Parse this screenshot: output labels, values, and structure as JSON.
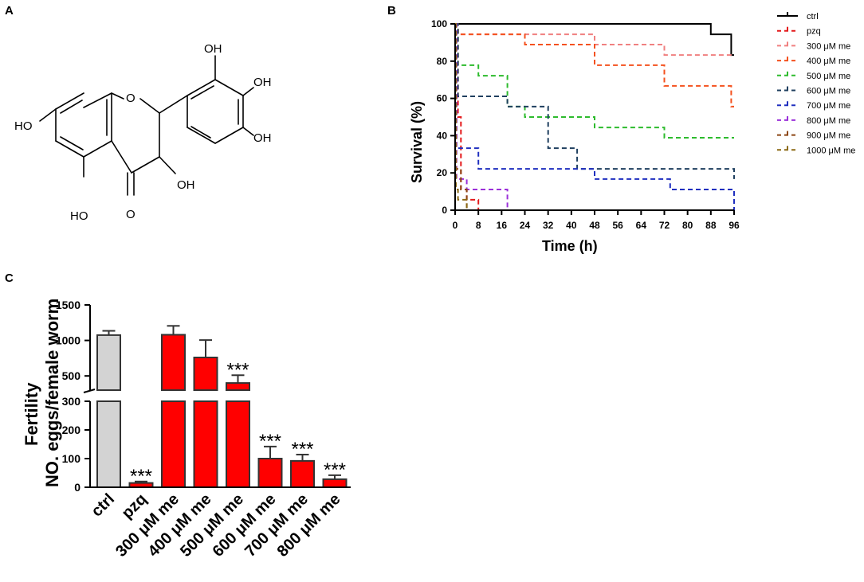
{
  "panels": {
    "a": {
      "label": "A",
      "structure": {
        "substituents": {
          "oh_top": "OH",
          "oh_right_upper": "OH",
          "oh_right_lower": "OH",
          "oh_left": "HO",
          "oh_c3": "OH",
          "oh_bottom": "HO",
          "ring_o": "O",
          "carbonyl_o": "O"
        }
      }
    },
    "b": {
      "label": "B"
    },
    "c": {
      "label": "C"
    }
  },
  "chart_data": [
    {
      "id": "survival",
      "type": "line",
      "step": true,
      "title": "",
      "xlabel": "Time (h)",
      "ylabel": "Survival (%)",
      "xlim": [
        0,
        96
      ],
      "ylim": [
        0,
        100
      ],
      "xticks": [
        0,
        8,
        16,
        24,
        32,
        40,
        48,
        56,
        64,
        72,
        80,
        88,
        96
      ],
      "yticks": [
        0,
        20,
        40,
        60,
        80,
        100
      ],
      "legend_position": "right",
      "series": [
        {
          "name": "ctrl",
          "color": "#000000",
          "dashed": false,
          "points": [
            [
              0,
              100
            ],
            [
              88,
              100
            ],
            [
              88,
              94.4
            ],
            [
              95,
              94.4
            ],
            [
              95,
              83.3
            ],
            [
              96,
              83.3
            ]
          ]
        },
        {
          "name": "pzq",
          "color": "#e41a1c",
          "dashed": true,
          "points": [
            [
              0,
              100
            ],
            [
              1,
              100
            ],
            [
              1,
              50
            ],
            [
              2,
              50
            ],
            [
              2,
              11.1
            ],
            [
              4,
              11.1
            ],
            [
              4,
              5.6
            ],
            [
              8,
              5.6
            ],
            [
              8,
              0
            ]
          ]
        },
        {
          "name": "300 μM me",
          "color": "#f08080",
          "dashed": true,
          "points": [
            [
              0,
              100
            ],
            [
              1,
              100
            ],
            [
              1,
              94.4
            ],
            [
              48,
              94.4
            ],
            [
              48,
              88.9
            ],
            [
              72,
              88.9
            ],
            [
              72,
              83.3
            ],
            [
              96,
              83.3
            ]
          ]
        },
        {
          "name": "400 μM me",
          "color": "#f4511e",
          "dashed": true,
          "points": [
            [
              0,
              100
            ],
            [
              1,
              100
            ],
            [
              1,
              94.4
            ],
            [
              24,
              94.4
            ],
            [
              24,
              88.9
            ],
            [
              48,
              88.9
            ],
            [
              48,
              77.8
            ],
            [
              72,
              77.8
            ],
            [
              72,
              66.7
            ],
            [
              95,
              66.7
            ],
            [
              95,
              55.6
            ],
            [
              96,
              55.6
            ]
          ]
        },
        {
          "name": "500 μM me",
          "color": "#2dbb2d",
          "dashed": true,
          "points": [
            [
              0,
              100
            ],
            [
              1,
              100
            ],
            [
              1,
              77.8
            ],
            [
              8,
              77.8
            ],
            [
              8,
              72.2
            ],
            [
              18,
              72.2
            ],
            [
              18,
              55.6
            ],
            [
              24,
              55.6
            ],
            [
              24,
              50
            ],
            [
              48,
              50
            ],
            [
              48,
              44.4
            ],
            [
              72,
              44.4
            ],
            [
              72,
              38.9
            ],
            [
              96,
              38.9
            ]
          ]
        },
        {
          "name": "600 μM me",
          "color": "#1f3f5f",
          "dashed": true,
          "points": [
            [
              0,
              100
            ],
            [
              1,
              100
            ],
            [
              1,
              61.1
            ],
            [
              18,
              61.1
            ],
            [
              18,
              55.6
            ],
            [
              32,
              55.6
            ],
            [
              32,
              33.3
            ],
            [
              42,
              33.3
            ],
            [
              42,
              22.2
            ],
            [
              96,
              22.2
            ],
            [
              96,
              16.7
            ]
          ]
        },
        {
          "name": "700 μM me",
          "color": "#1f2fbf",
          "dashed": true,
          "points": [
            [
              0,
              100
            ],
            [
              0.5,
              100
            ],
            [
              0.5,
              33.3
            ],
            [
              8,
              33.3
            ],
            [
              8,
              22.2
            ],
            [
              48,
              22.2
            ],
            [
              48,
              16.7
            ],
            [
              74,
              16.7
            ],
            [
              74,
              11.1
            ],
            [
              96,
              11.1
            ],
            [
              96,
              0
            ]
          ]
        },
        {
          "name": "800 μM me",
          "color": "#9b30d9",
          "dashed": true,
          "points": [
            [
              0,
              100
            ],
            [
              0.5,
              100
            ],
            [
              0.5,
              16.7
            ],
            [
              4,
              16.7
            ],
            [
              4,
              11.1
            ],
            [
              18,
              11.1
            ],
            [
              18,
              0
            ]
          ]
        },
        {
          "name": "900 μM me",
          "color": "#8b4513",
          "dashed": true,
          "points": [
            [
              0,
              100
            ],
            [
              0.3,
              100
            ],
            [
              0.3,
              22.2
            ],
            [
              2,
              22.2
            ],
            [
              2,
              11.1
            ],
            [
              4,
              11.1
            ],
            [
              4,
              0
            ]
          ]
        },
        {
          "name": "1000 μM me",
          "color": "#8b6914",
          "dashed": true,
          "points": [
            [
              0,
              100
            ],
            [
              0.3,
              100
            ],
            [
              0.3,
              11.1
            ],
            [
              1,
              11.1
            ],
            [
              1,
              5.6
            ],
            [
              4,
              5.6
            ],
            [
              4,
              0
            ]
          ]
        }
      ]
    },
    {
      "id": "fertility",
      "type": "bar",
      "title": "",
      "xlabel": "",
      "ylabel_line1": "Fertility",
      "ylabel_line2": "NO. eggs/female worm",
      "axis_break": {
        "lower": [
          0,
          300
        ],
        "upper": [
          300,
          1500
        ]
      },
      "yticks_lower": [
        0,
        100,
        200,
        300
      ],
      "yticks_upper": [
        500,
        1000,
        1500
      ],
      "categories": [
        "ctrl",
        "pzq",
        "300 μM me",
        "400 μM me",
        "500 μM me",
        "600 μM me",
        "700 μM me",
        "800 μM me"
      ],
      "values": [
        1075,
        15,
        1080,
        760,
        400,
        100,
        92,
        28
      ],
      "errors": [
        60,
        5,
        125,
        245,
        110,
        42,
        22,
        14
      ],
      "colors": [
        "#d3d3d3",
        "#ff0000",
        "#ff0000",
        "#ff0000",
        "#ff0000",
        "#ff0000",
        "#ff0000",
        "#ff0000"
      ],
      "significance": [
        "",
        "***",
        "",
        "",
        "***",
        "***",
        "***",
        "***"
      ]
    }
  ]
}
